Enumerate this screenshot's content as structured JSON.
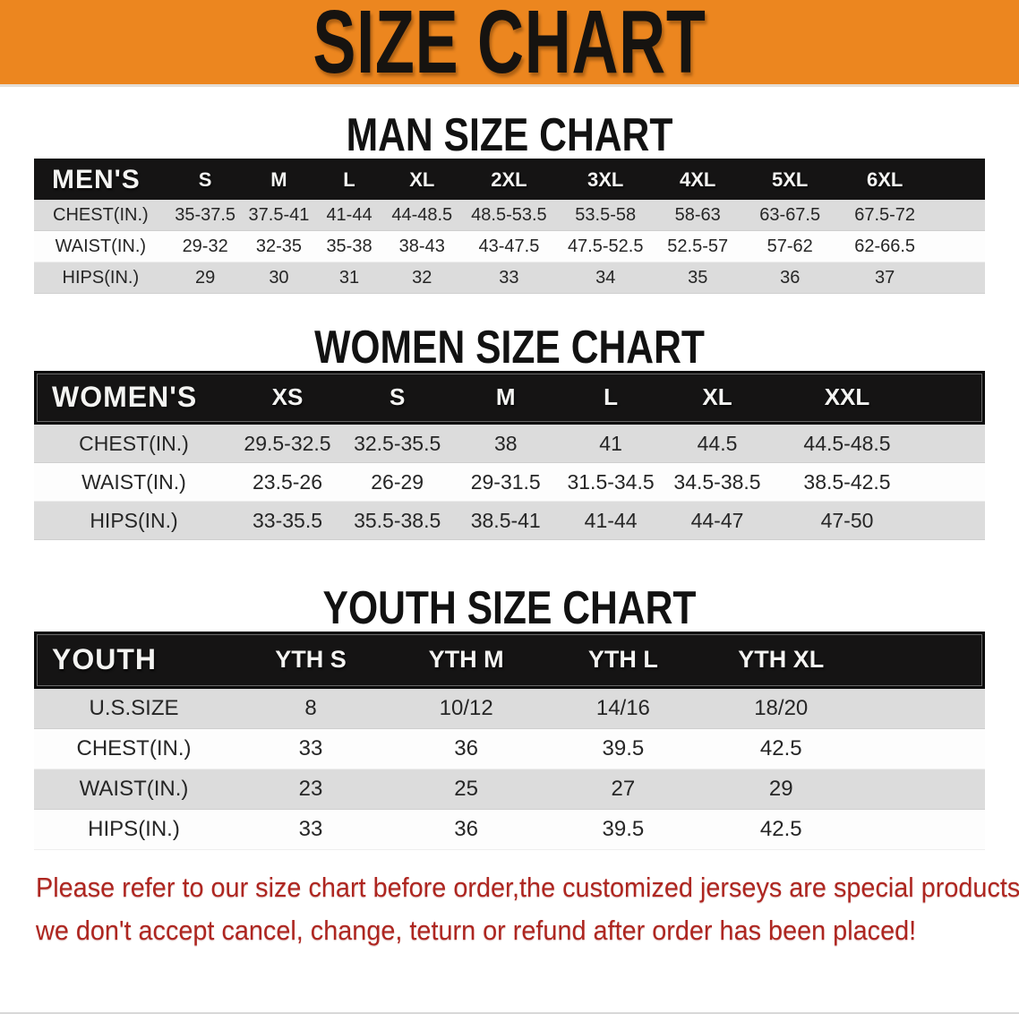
{
  "banner": {
    "title": "SIZE CHART",
    "bg_color": "#EC861F"
  },
  "sections": [
    {
      "id": "men",
      "heading": "MAN SIZE CHART",
      "table": {
        "header_label": "MEN'S",
        "columns": [
          "S",
          "M",
          "L",
          "XL",
          "2XL",
          "3XL",
          "4XL",
          "5XL",
          "6XL"
        ],
        "rows": [
          {
            "label": "CHEST(IN.)",
            "values": [
              "35-37.5",
              "37.5-41",
              "41-44",
              "44-48.5",
              "48.5-53.5",
              "53.5-58",
              "58-63",
              "63-67.5",
              "67.5-72"
            ]
          },
          {
            "label": "WAIST(IN.)",
            "values": [
              "29-32",
              "32-35",
              "35-38",
              "38-43",
              "43-47.5",
              "47.5-52.5",
              "52.5-57",
              "57-62",
              "62-66.5"
            ]
          },
          {
            "label": "HIPS(IN.)",
            "values": [
              "29",
              "30",
              "31",
              "32",
              "33",
              "34",
              "35",
              "36",
              "37"
            ]
          }
        ]
      }
    },
    {
      "id": "women",
      "heading": "WOMEN SIZE CHART",
      "table": {
        "header_label": "WOMEN'S",
        "columns": [
          "XS",
          "S",
          "M",
          "L",
          "XL",
          "XXL"
        ],
        "rows": [
          {
            "label": "CHEST(IN.)",
            "values": [
              "29.5-32.5",
              "32.5-35.5",
              "38",
              "41",
              "44.5",
              "44.5-48.5"
            ]
          },
          {
            "label": "WAIST(IN.)",
            "values": [
              "23.5-26",
              "26-29",
              "29-31.5",
              "31.5-34.5",
              "34.5-38.5",
              "38.5-42.5"
            ]
          },
          {
            "label": "HIPS(IN.)",
            "values": [
              "33-35.5",
              "35.5-38.5",
              "38.5-41",
              "41-44",
              "44-47",
              "47-50"
            ]
          }
        ]
      }
    },
    {
      "id": "youth",
      "heading": "YOUTH SIZE CHART",
      "table": {
        "header_label": "YOUTH",
        "columns": [
          "YTH S",
          "YTH M",
          "YTH L",
          "YTH XL"
        ],
        "rows": [
          {
            "label": "U.S.SIZE",
            "values": [
              "8",
              "10/12",
              "14/16",
              "18/20"
            ]
          },
          {
            "label": "CHEST(IN.)",
            "values": [
              "33",
              "36",
              "39.5",
              "42.5"
            ]
          },
          {
            "label": "WAIST(IN.)",
            "values": [
              "23",
              "25",
              "27",
              "29"
            ]
          },
          {
            "label": "HIPS(IN.)",
            "values": [
              "33",
              "36",
              "39.5",
              "42.5"
            ]
          }
        ]
      }
    }
  ],
  "disclaimer": {
    "line1": "Please refer to our size chart before order,the customized jerseys are special products,",
    "line2": "we don't accept cancel, change, teturn or refund after order has been placed!",
    "text_color": "#AE2620"
  }
}
